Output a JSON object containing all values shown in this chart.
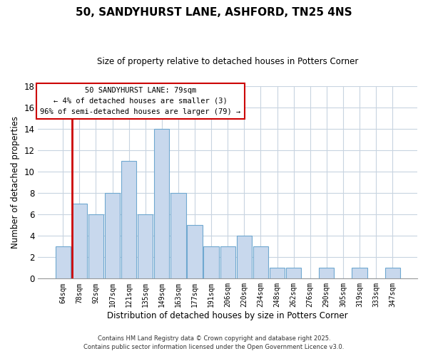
{
  "title": "50, SANDYHURST LANE, ASHFORD, TN25 4NS",
  "subtitle": "Size of property relative to detached houses in Potters Corner",
  "xlabel": "Distribution of detached houses by size in Potters Corner",
  "ylabel": "Number of detached properties",
  "bar_color": "#c8d8ed",
  "bar_edge_color": "#6fa8d0",
  "highlight_line_color": "#cc0000",
  "background_color": "#ffffff",
  "grid_color": "#c8d4e0",
  "categories": [
    "64sqm",
    "78sqm",
    "92sqm",
    "107sqm",
    "121sqm",
    "135sqm",
    "149sqm",
    "163sqm",
    "177sqm",
    "191sqm",
    "206sqm",
    "220sqm",
    "234sqm",
    "248sqm",
    "262sqm",
    "276sqm",
    "290sqm",
    "305sqm",
    "319sqm",
    "333sqm",
    "347sqm"
  ],
  "values": [
    3,
    7,
    6,
    8,
    11,
    6,
    14,
    8,
    5,
    3,
    3,
    4,
    3,
    1,
    1,
    0,
    1,
    0,
    1,
    0,
    1
  ],
  "ylim": [
    0,
    18
  ],
  "yticks": [
    0,
    2,
    4,
    6,
    8,
    10,
    12,
    14,
    16,
    18
  ],
  "highlight_index": 1,
  "annotation_line1": "50 SANDYHURST LANE: 79sqm",
  "annotation_line2": "← 4% of detached houses are smaller (3)",
  "annotation_line3": "96% of semi-detached houses are larger (79) →",
  "footer_line1": "Contains HM Land Registry data © Crown copyright and database right 2025.",
  "footer_line2": "Contains public sector information licensed under the Open Government Licence v3.0."
}
